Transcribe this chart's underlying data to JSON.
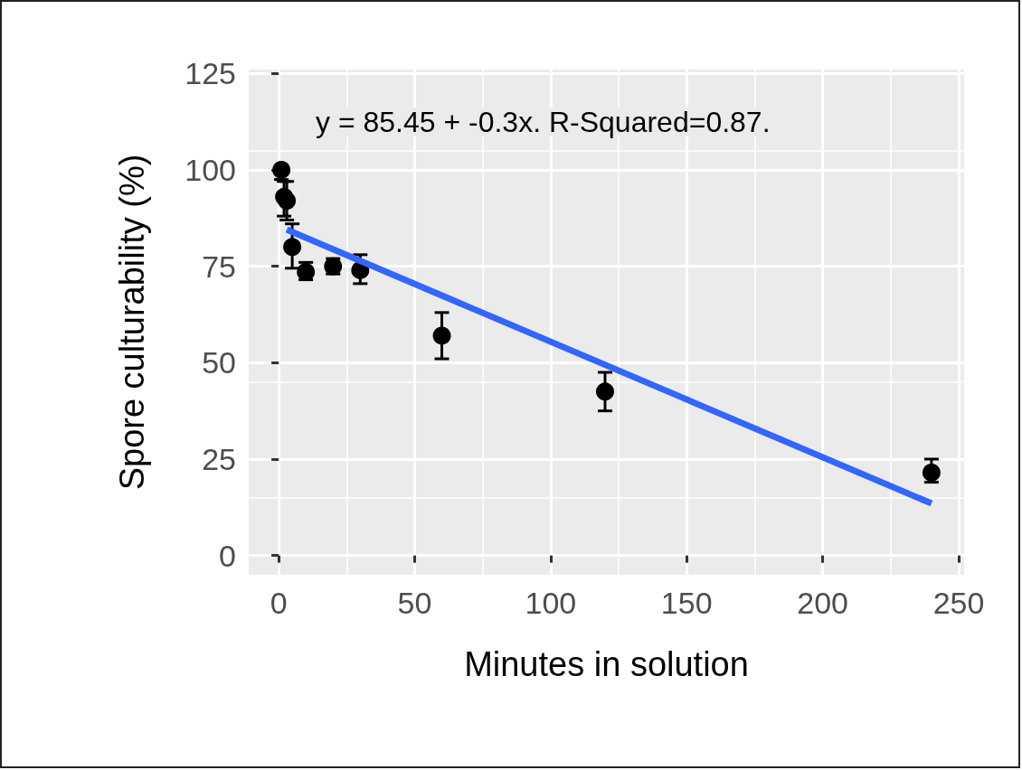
{
  "chart_data": {
    "type": "scatter",
    "xlabel": "Minutes in solution",
    "ylabel": "Spore culturability (%)",
    "annotations": [
      "y = 85.45 + -0.3x. R-Squared=0.87."
    ],
    "xlim": [
      -11,
      252
    ],
    "xticks": [
      0,
      50,
      100,
      150,
      200,
      250
    ],
    "ylim": [
      -5,
      126
    ],
    "yticks": [
      0,
      25,
      50,
      75,
      100,
      125
    ],
    "grid": true,
    "series": [
      {
        "color": "#000000",
        "marker": "circle",
        "x": [
          1,
          2,
          3,
          5,
          10,
          20,
          30,
          60,
          120,
          240
        ],
        "values": [
          100,
          93,
          92,
          80,
          73.5,
          75,
          74,
          57,
          42.5,
          21.5
        ],
        "errors": [
          [
            97.5,
            100
          ],
          [
            88,
            97
          ],
          [
            87,
            97
          ],
          [
            74.5,
            86
          ],
          [
            71.5,
            76
          ],
          [
            73,
            77
          ],
          [
            70.5,
            78
          ],
          [
            51,
            63
          ],
          [
            37.5,
            47.5
          ],
          [
            19,
            25
          ]
        ]
      },
      {
        "type": "line",
        "color": "#3366ff",
        "x": [
          3,
          240
        ],
        "values": [
          84.5,
          13.5
        ]
      }
    ]
  }
}
